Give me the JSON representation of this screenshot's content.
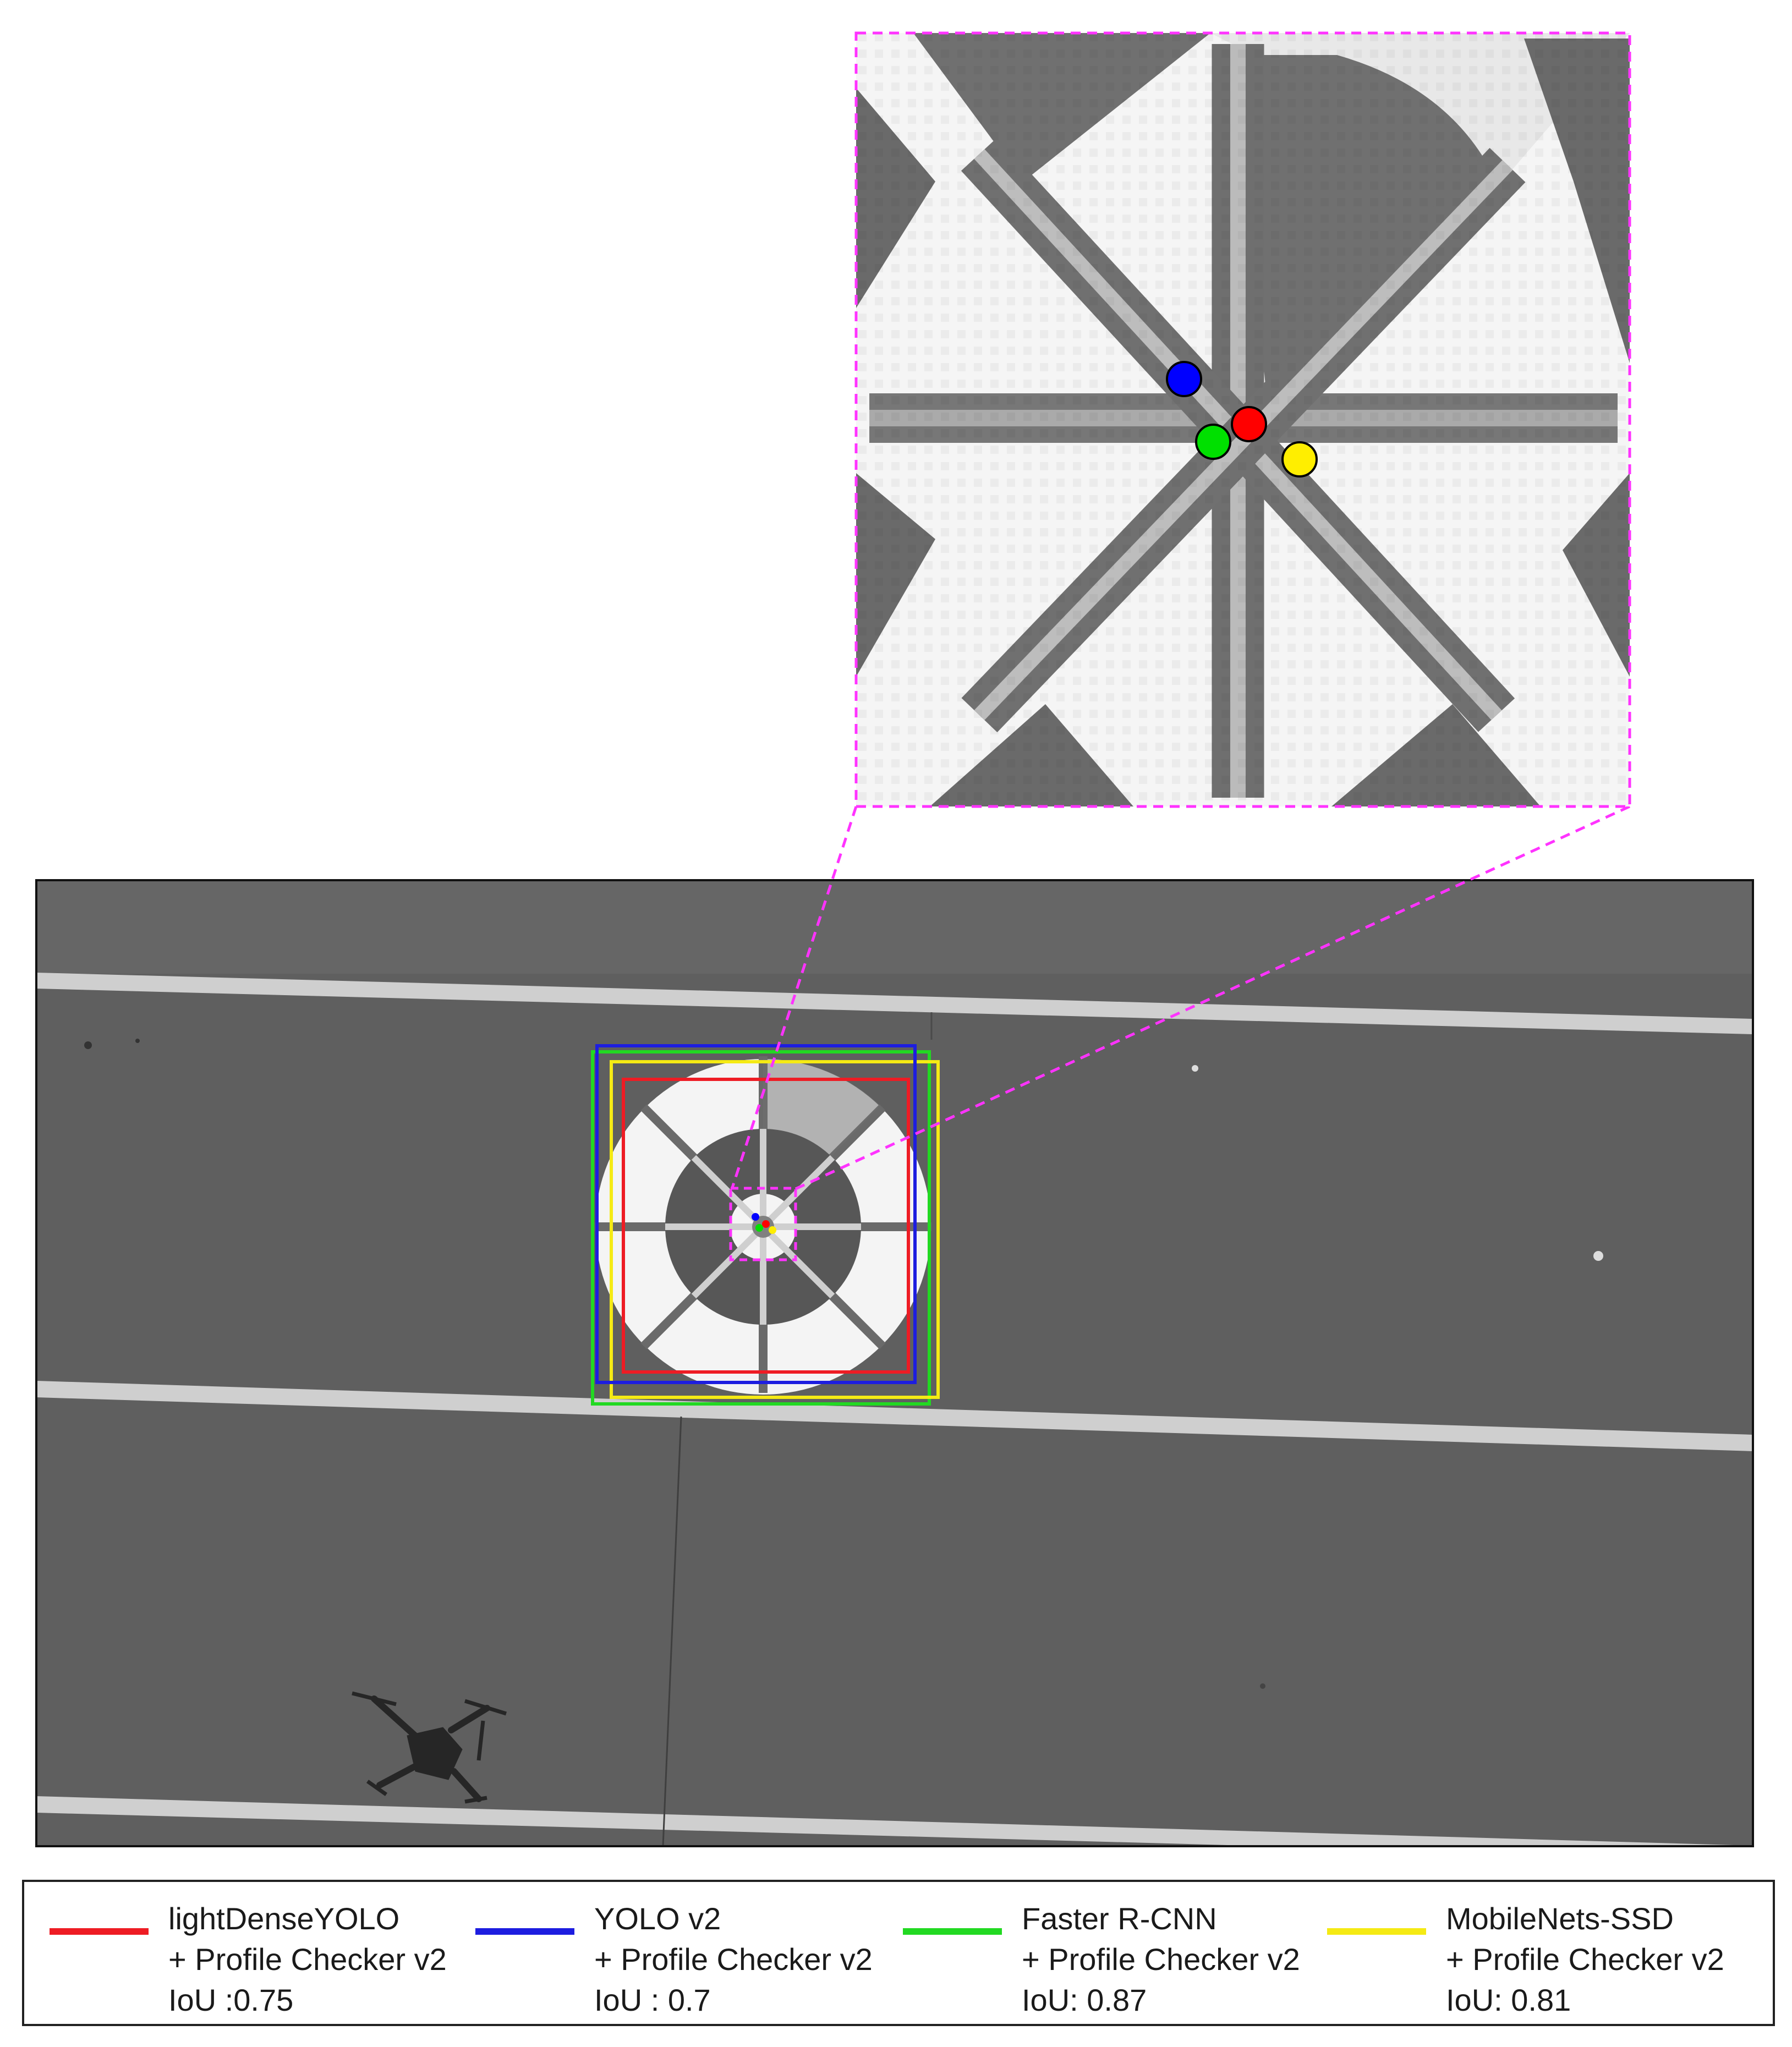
{
  "figure": {
    "inset_border_color": "#ff33ff",
    "ground_color": "#5e5e5e",
    "marker_colors": {
      "lightDenseYOLO": "#ff0000",
      "YOLO v2": "#0000ff",
      "Faster R-CNN": "#00e000",
      "MobileNets-SSD": "#ffee00"
    }
  },
  "legend": {
    "items": [
      {
        "color": "#ee1c24",
        "line1": "lightDenseYOLO",
        "line2": "+ Profile Checker v2",
        "line3": "IoU :0.75"
      },
      {
        "color": "#1d1de0",
        "line1": "YOLO v2",
        "line2": "+ Profile Checker v2",
        "line3": "IoU : 0.7"
      },
      {
        "color": "#22d922",
        "line1": "Faster R-CNN",
        "line2": "+ Profile Checker v2",
        "line3": "IoU: 0.87"
      },
      {
        "color": "#f5ea14",
        "line1": "MobileNets-SSD",
        "line2": "+ Profile Checker v2",
        "line3": "IoU: 0.81"
      }
    ]
  }
}
